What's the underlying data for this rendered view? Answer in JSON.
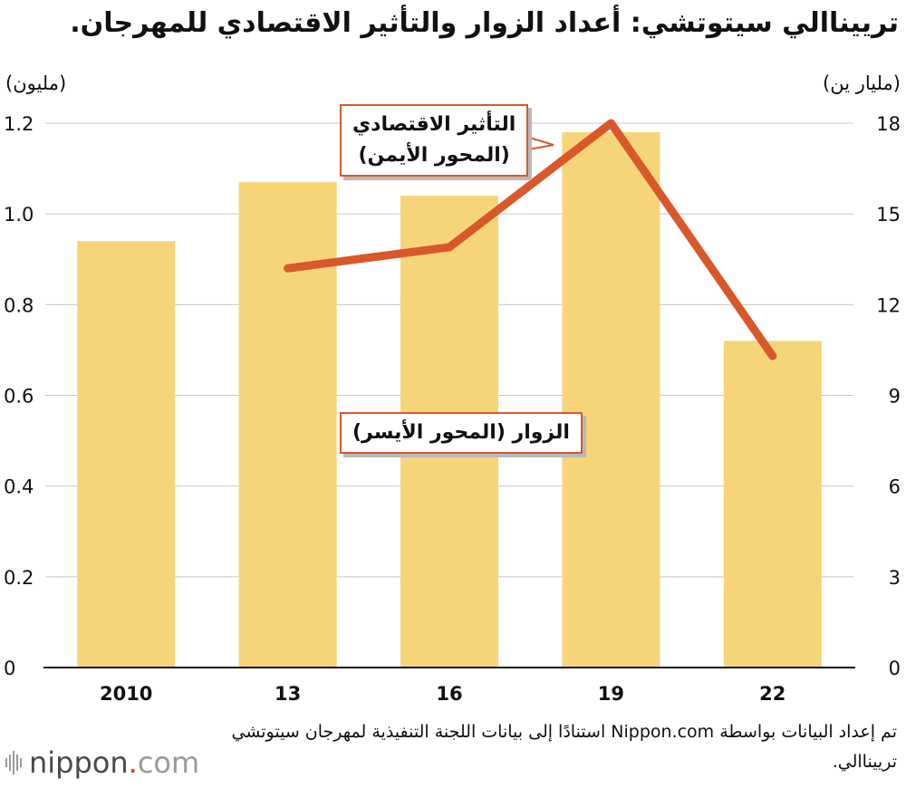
{
  "title": "ترييناالي سيتوتشي: أعداد الزوار والتأثير الاقتصادي للمهرجان.",
  "left_unit": "(مليون)",
  "right_unit": "(مليار ين)",
  "callouts": {
    "economic": [
      "التأثير الاقتصادي",
      "(المحور الأيمن)"
    ],
    "visitors": "الزوار (المحور الأيسر)"
  },
  "source": "تم إعداد البيانات بواسطة Nippon.com استنادًا إلى بيانات اللجنة التنفيذية لمهرجان سيتوتشي ترييناالي.",
  "logo": {
    "main": "nippon",
    "dot": ".",
    "suffix": "com"
  },
  "colors": {
    "bar": "#f6d57a",
    "line": "#d9582b",
    "grid": "#c8c8c8",
    "axis": "#111111"
  },
  "chart_data": {
    "type": "bar",
    "categories": [
      "2010",
      "13",
      "16",
      "19",
      "22"
    ],
    "series": [
      {
        "name": "الزوار (المحور الأيسر)",
        "type": "bar",
        "axis": "left",
        "values": [
          0.94,
          1.07,
          1.04,
          1.18,
          0.72
        ]
      },
      {
        "name": "التأثير الاقتصادي (المحور الأيمن)",
        "type": "line",
        "axis": "right",
        "values": [
          null,
          13.2,
          13.9,
          18.0,
          10.3
        ]
      }
    ],
    "y_left": {
      "label": "(مليون)",
      "range": [
        0,
        1.2
      ],
      "ticks": [
        "0",
        "0.2",
        "0.4",
        "0.6",
        "0.8",
        "1.0",
        "1.2"
      ]
    },
    "y_right": {
      "label": "(مليار ين)",
      "range": [
        0,
        18
      ],
      "ticks": [
        "0",
        "3",
        "6",
        "9",
        "12",
        "15",
        "18"
      ]
    },
    "grid": true
  }
}
